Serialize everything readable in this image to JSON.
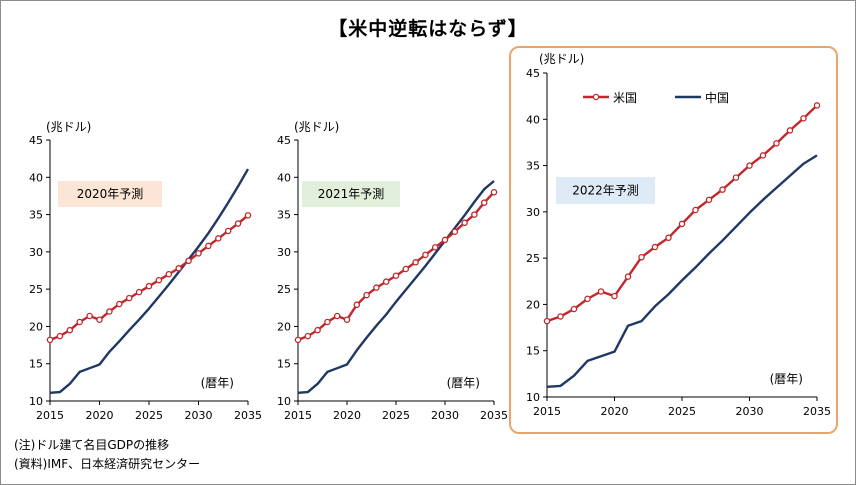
{
  "title": "【米中逆転はならず】",
  "notes": [
    "(注)ドル建て名目GDPの推移",
    "(資料)IMF、日本経済研究センター"
  ],
  "colors": {
    "us": "#c0282b",
    "china": "#1f3864",
    "highlight_border": "#e9a66c"
  },
  "chart_data": [
    {
      "type": "line",
      "unit_label": "(兆ドル)",
      "year_label": "(暦年)",
      "forecast_label": "2020年予測",
      "forecast_bg": "#fbe5d6",
      "xlim": [
        2015,
        2035
      ],
      "ylim": [
        10,
        45
      ],
      "xticks": [
        2015,
        2020,
        2025,
        2030,
        2035
      ],
      "yticks": [
        10,
        15,
        20,
        25,
        30,
        35,
        40,
        45
      ],
      "legend": false,
      "series": [
        {
          "key": "us",
          "name": "米国",
          "x": [
            2015,
            2016,
            2017,
            2018,
            2019,
            2020,
            2021,
            2022,
            2023,
            2024,
            2025,
            2026,
            2027,
            2028,
            2029,
            2030,
            2031,
            2032,
            2033,
            2034,
            2035
          ],
          "y": [
            18.2,
            18.7,
            19.5,
            20.6,
            21.4,
            20.9,
            22.0,
            23.0,
            23.8,
            24.6,
            25.4,
            26.2,
            27.0,
            27.8,
            28.8,
            29.8,
            30.8,
            31.8,
            32.8,
            33.8,
            34.9
          ]
        },
        {
          "key": "china",
          "name": "中国",
          "x": [
            2015,
            2016,
            2017,
            2018,
            2019,
            2020,
            2021,
            2022,
            2023,
            2024,
            2025,
            2026,
            2027,
            2028,
            2029,
            2030,
            2031,
            2032,
            2033,
            2034,
            2035
          ],
          "y": [
            11.1,
            11.2,
            12.3,
            13.9,
            14.4,
            14.9,
            16.6,
            18.0,
            19.5,
            20.9,
            22.4,
            24.0,
            25.6,
            27.3,
            29.0,
            30.7,
            32.5,
            34.5,
            36.6,
            38.8,
            41.1
          ]
        }
      ]
    },
    {
      "type": "line",
      "unit_label": "(兆ドル)",
      "year_label": "(暦年)",
      "forecast_label": "2021年予測",
      "forecast_bg": "#e2efda",
      "xlim": [
        2015,
        2035
      ],
      "ylim": [
        10,
        45
      ],
      "xticks": [
        2015,
        2020,
        2025,
        2030,
        2035
      ],
      "yticks": [
        10,
        15,
        20,
        25,
        30,
        35,
        40,
        45
      ],
      "legend": false,
      "series": [
        {
          "key": "us",
          "name": "米国",
          "x": [
            2015,
            2016,
            2017,
            2018,
            2019,
            2020,
            2021,
            2022,
            2023,
            2024,
            2025,
            2026,
            2027,
            2028,
            2029,
            2030,
            2031,
            2032,
            2033,
            2034,
            2035
          ],
          "y": [
            18.2,
            18.7,
            19.5,
            20.6,
            21.4,
            20.9,
            22.9,
            24.2,
            25.2,
            26.0,
            26.8,
            27.7,
            28.6,
            29.6,
            30.6,
            31.6,
            32.7,
            33.9,
            35.0,
            36.6,
            38.0
          ]
        },
        {
          "key": "china",
          "name": "中国",
          "x": [
            2015,
            2016,
            2017,
            2018,
            2019,
            2020,
            2021,
            2022,
            2023,
            2024,
            2025,
            2026,
            2027,
            2028,
            2029,
            2030,
            2031,
            2032,
            2033,
            2034,
            2035
          ],
          "y": [
            11.1,
            11.2,
            12.3,
            13.9,
            14.4,
            14.9,
            16.8,
            18.5,
            20.1,
            21.6,
            23.3,
            24.9,
            26.5,
            28.1,
            29.8,
            31.5,
            33.2,
            34.9,
            36.7,
            38.4,
            39.5
          ]
        }
      ]
    },
    {
      "type": "line",
      "unit_label": "(兆ドル)",
      "year_label": "(暦年)",
      "forecast_label": "2022年予測",
      "forecast_bg": "#deeaf6",
      "xlim": [
        2015,
        2035
      ],
      "ylim": [
        10,
        45
      ],
      "xticks": [
        2015,
        2020,
        2025,
        2030,
        2035
      ],
      "yticks": [
        10,
        15,
        20,
        25,
        30,
        35,
        40,
        45
      ],
      "legend": true,
      "legend_position": "top-left",
      "series": [
        {
          "key": "us",
          "name": "米国",
          "x": [
            2015,
            2016,
            2017,
            2018,
            2019,
            2020,
            2021,
            2022,
            2023,
            2024,
            2025,
            2026,
            2027,
            2028,
            2029,
            2030,
            2031,
            2032,
            2033,
            2034,
            2035
          ],
          "y": [
            18.2,
            18.7,
            19.5,
            20.6,
            21.4,
            20.9,
            23.0,
            25.1,
            26.2,
            27.2,
            28.7,
            30.2,
            31.3,
            32.4,
            33.7,
            35.0,
            36.1,
            37.4,
            38.8,
            40.1,
            41.5
          ]
        },
        {
          "key": "china",
          "name": "中国",
          "x": [
            2015,
            2016,
            2017,
            2018,
            2019,
            2020,
            2021,
            2022,
            2023,
            2024,
            2025,
            2026,
            2027,
            2028,
            2029,
            2030,
            2031,
            2032,
            2033,
            2034,
            2035
          ],
          "y": [
            11.1,
            11.2,
            12.3,
            13.9,
            14.4,
            14.9,
            17.7,
            18.2,
            19.8,
            21.1,
            22.6,
            24.0,
            25.5,
            26.9,
            28.4,
            29.9,
            31.3,
            32.6,
            33.9,
            35.2,
            36.1
          ]
        }
      ]
    }
  ]
}
